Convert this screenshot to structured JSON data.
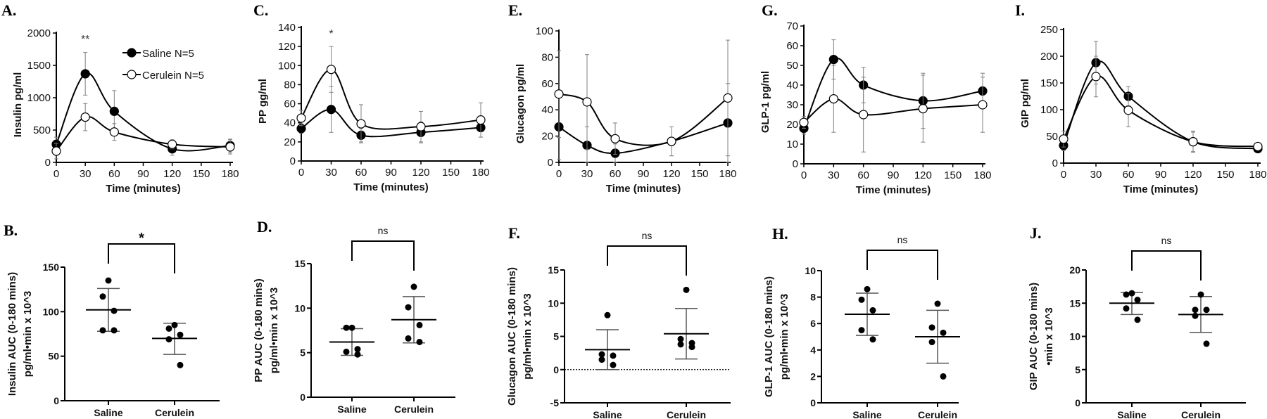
{
  "colors": {
    "line": "#000000",
    "error": "#808080",
    "open_fill": "#ffffff"
  },
  "chart_data": [
    {
      "panel_label": "A.",
      "type": "line",
      "ylabel": "Insulin pg/ml",
      "xlabel": "Time (minutes)",
      "x": [
        0,
        30,
        60,
        120,
        180
      ],
      "xticks": [
        0,
        30,
        60,
        90,
        120,
        150,
        180
      ],
      "xlim": [
        0,
        180
      ],
      "ylim": [
        0,
        2000
      ],
      "yticks": [
        0,
        500,
        1000,
        1500,
        2000
      ],
      "series": [
        {
          "legend": "Saline N=5",
          "filled": true,
          "values": [
            280,
            1370,
            790,
            210,
            260
          ],
          "sd": [
            110,
            330,
            320,
            100,
            100
          ]
        },
        {
          "legend": "Cerulein N=5",
          "filled": false,
          "values": [
            175,
            700,
            470,
            280,
            240
          ],
          "sd": [
            120,
            210,
            130,
            70,
            110
          ]
        }
      ],
      "annotations": [
        {
          "x": 30,
          "text": "**"
        }
      ]
    },
    {
      "panel_label": "C.",
      "type": "line",
      "ylabel": "PP gg/ml",
      "xlabel": "Time (minutes)",
      "x": [
        0,
        30,
        60,
        120,
        180
      ],
      "xticks": [
        0,
        30,
        60,
        90,
        120,
        150,
        180
      ],
      "xlim": [
        0,
        180
      ],
      "ylim": [
        0,
        140
      ],
      "yticks": [
        0,
        20,
        40,
        60,
        80,
        100,
        120,
        140
      ],
      "series": [
        {
          "filled": true,
          "values": [
            34,
            54,
            27,
            30,
            35
          ],
          "sd": [
            5,
            24,
            7,
            11,
            10
          ]
        },
        {
          "filled": false,
          "values": [
            45,
            96,
            39,
            36,
            43
          ],
          "sd": [
            8,
            24,
            20,
            16,
            18
          ]
        }
      ],
      "annotations": [
        {
          "x": 30,
          "text": "*"
        }
      ]
    },
    {
      "panel_label": "E.",
      "type": "line",
      "ylabel": "Glucagon pg/ml",
      "xlabel": "Time (minutes)",
      "x": [
        0,
        30,
        60,
        120,
        180
      ],
      "xticks": [
        0,
        30,
        60,
        90,
        120,
        150,
        180
      ],
      "xlim": [
        0,
        180
      ],
      "ylim": [
        0,
        100
      ],
      "yticks": [
        0,
        20,
        40,
        60,
        80,
        100
      ],
      "series": [
        {
          "filled": true,
          "values": [
            27,
            13,
            7,
            16,
            30
          ],
          "sd": [
            25,
            14,
            7,
            11,
            30
          ]
        },
        {
          "filled": false,
          "values": [
            52,
            46,
            18,
            16,
            49
          ],
          "sd": [
            33,
            36,
            12,
            11,
            44
          ]
        }
      ],
      "annotations": []
    },
    {
      "panel_label": "G.",
      "type": "line",
      "ylabel": "GLP-1 pg/ml",
      "xlabel": "Time (minutes)",
      "x": [
        0,
        30,
        60,
        120,
        180
      ],
      "xticks": [
        0,
        30,
        60,
        90,
        120,
        150,
        180
      ],
      "xlim": [
        0,
        180
      ],
      "ylim": [
        0,
        70
      ],
      "yticks": [
        0,
        10,
        20,
        30,
        40,
        50,
        60,
        70
      ],
      "series": [
        {
          "filled": true,
          "values": [
            18,
            53,
            40,
            32,
            37
          ],
          "sd": [
            3,
            10,
            9,
            14,
            9
          ]
        },
        {
          "filled": false,
          "values": [
            21,
            33,
            25,
            28,
            30
          ],
          "sd": [
            3,
            17,
            19,
            17,
            14
          ]
        }
      ],
      "annotations": []
    },
    {
      "panel_label": "I.",
      "type": "line",
      "ylabel": "GIP pg/ml",
      "xlabel": "Time (minutes)",
      "x": [
        0,
        30,
        60,
        120,
        180
      ],
      "xticks": [
        0,
        30,
        60,
        90,
        120,
        150,
        180
      ],
      "xlim": [
        0,
        180
      ],
      "ylim": [
        0,
        250
      ],
      "yticks": [
        0,
        50,
        100,
        150,
        200,
        250
      ],
      "series": [
        {
          "filled": true,
          "values": [
            33,
            188,
            125,
            40,
            27
          ],
          "sd": [
            10,
            40,
            18,
            18,
            3
          ]
        },
        {
          "filled": false,
          "values": [
            45,
            162,
            99,
            40,
            31
          ],
          "sd": [
            15,
            38,
            31,
            20,
            3
          ]
        }
      ],
      "annotations": []
    },
    {
      "panel_label": "B.",
      "type": "scatter",
      "ylabel": [
        "Insulin AUC (0-180 mins)",
        "pg/ml•min x 10^3"
      ],
      "categories": [
        "Saline",
        "Cerulein"
      ],
      "ylim": [
        0,
        150
      ],
      "yticks": [
        0,
        50,
        100,
        150
      ],
      "significance": "*",
      "groups": [
        {
          "points": [
            135,
            117,
            101,
            79,
            79
          ],
          "mean": 102,
          "sd_low": 78,
          "sd_high": 126
        },
        {
          "points": [
            85,
            81,
            74,
            69,
            40
          ],
          "mean": 70,
          "sd_low": 52,
          "sd_high": 87
        }
      ]
    },
    {
      "panel_label": "D.",
      "type": "scatter",
      "ylabel": [
        "PP AUC (0-180 mins)",
        "pg/ml•min x 10^3"
      ],
      "categories": [
        "Saline",
        "Cerulein"
      ],
      "ylim": [
        0,
        15
      ],
      "yticks": [
        0,
        5,
        10,
        15
      ],
      "significance": "ns",
      "groups": [
        {
          "points": [
            7.8,
            7.8,
            5.4,
            5.1,
            4.8
          ],
          "mean": 6.2,
          "sd_low": 4.7,
          "sd_high": 7.7
        },
        {
          "points": [
            12.4,
            10.1,
            8.1,
            6.6,
            6.2
          ],
          "mean": 8.7,
          "sd_low": 6.1,
          "sd_high": 11.3
        }
      ]
    },
    {
      "panel_label": "F.",
      "type": "scatter",
      "ylabel": [
        "Glucagon AUC (0-180 mins)",
        "pg/ml•min x 10^3"
      ],
      "categories": [
        "Saline",
        "Cerulein"
      ],
      "ylim": [
        -5,
        15
      ],
      "yticks": [
        -5,
        0,
        5,
        10,
        15
      ],
      "significance": "ns",
      "reference_line": 0,
      "groups": [
        {
          "points": [
            8.2,
            2.3,
            2.1,
            1.5,
            0.7
          ],
          "mean": 3.0,
          "sd_low": 0.0,
          "sd_high": 6.0
        },
        {
          "points": [
            12.0,
            4.6,
            4.0,
            3.8,
            3.4
          ],
          "mean": 5.4,
          "sd_low": 1.6,
          "sd_high": 9.2
        }
      ]
    },
    {
      "panel_label": "H.",
      "type": "scatter",
      "ylabel": [
        "GLP-1 AUC (0-180 mins)",
        "pg/ml•min x 10^3"
      ],
      "categories": [
        "Saline",
        "Cerulein"
      ],
      "ylim": [
        0,
        10
      ],
      "yticks": [
        0,
        2,
        4,
        6,
        8,
        10
      ],
      "significance": "ns",
      "groups": [
        {
          "points": [
            8.6,
            7.8,
            7.0,
            5.5,
            4.8
          ],
          "mean": 6.7,
          "sd_low": 5.1,
          "sd_high": 8.3
        },
        {
          "points": [
            7.5,
            5.7,
            5.3,
            4.6,
            2.0
          ],
          "mean": 5.0,
          "sd_low": 3.0,
          "sd_high": 7.0
        }
      ]
    },
    {
      "panel_label": "J.",
      "type": "scatter",
      "ylabel": [
        "GIP AUC (0-180 mins)",
        "•min x 10^3"
      ],
      "categories": [
        "Saline",
        "Cerulein"
      ],
      "ylim": [
        0,
        20
      ],
      "yticks": [
        0,
        5,
        10,
        15,
        20
      ],
      "significance": "ns",
      "groups": [
        {
          "points": [
            16.5,
            16.3,
            15.5,
            14.2,
            12.5
          ],
          "mean": 15.0,
          "sd_low": 13.3,
          "sd_high": 16.6
        },
        {
          "points": [
            16.3,
            14.0,
            14.0,
            13.1,
            8.9
          ],
          "mean": 13.3,
          "sd_low": 10.6,
          "sd_high": 16.0
        }
      ]
    }
  ]
}
